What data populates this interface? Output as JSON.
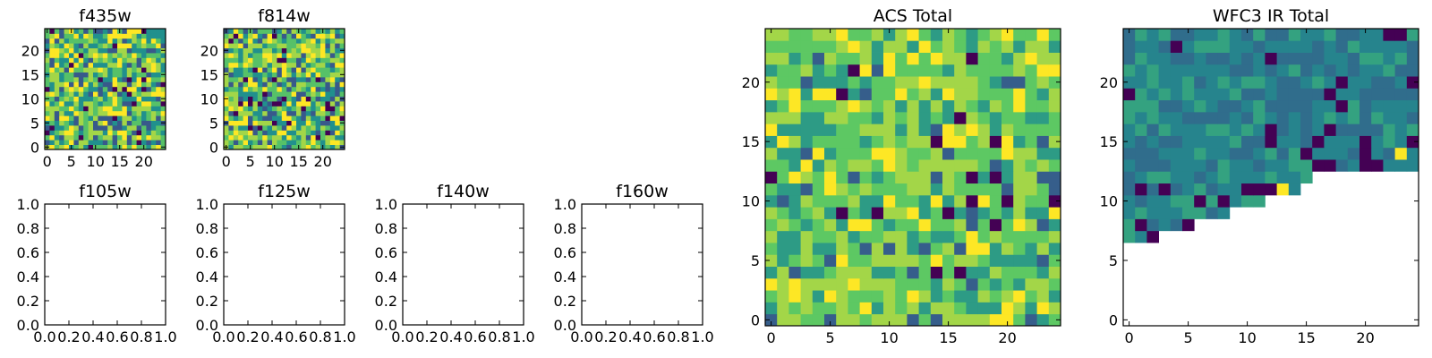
{
  "figure": {
    "background": "#ffffff"
  },
  "colormap": [
    "#440154",
    "#3b528b",
    "#21908d",
    "#5dc863",
    "#fde725"
  ],
  "chart_data": [
    {
      "type": "heatmap",
      "title": "f435w",
      "xticks": [
        "0",
        "5",
        "10",
        "15",
        "20"
      ],
      "yticks": [
        "0",
        "5",
        "10",
        "15",
        "20"
      ],
      "xlim": [
        0,
        25
      ],
      "ylim": [
        0,
        25
      ],
      "grid": false,
      "pattern": "noisy"
    },
    {
      "type": "heatmap",
      "title": "f814w",
      "xticks": [
        "0",
        "5",
        "10",
        "15",
        "20"
      ],
      "yticks": [
        "0",
        "5",
        "10",
        "15",
        "20"
      ],
      "xlim": [
        0,
        25
      ],
      "ylim": [
        0,
        25
      ],
      "grid": false,
      "pattern": "noisy"
    },
    {
      "type": "heatmap",
      "title": "f105w",
      "xticks": [
        "0.0",
        "0.2",
        "0.4",
        "0.6",
        "0.8",
        "1.0"
      ],
      "yticks": [
        "0.0",
        "0.2",
        "0.4",
        "0.6",
        "0.8",
        "1.0"
      ],
      "xlim": [
        0,
        1
      ],
      "ylim": [
        0,
        1
      ],
      "grid": false,
      "pattern": "empty"
    },
    {
      "type": "heatmap",
      "title": "f125w",
      "xticks": [
        "0.0",
        "0.2",
        "0.4",
        "0.6",
        "0.8",
        "1.0"
      ],
      "yticks": [
        "0.0",
        "0.2",
        "0.4",
        "0.6",
        "0.8",
        "1.0"
      ],
      "xlim": [
        0,
        1
      ],
      "ylim": [
        0,
        1
      ],
      "grid": false,
      "pattern": "empty"
    },
    {
      "type": "heatmap",
      "title": "f140w",
      "xticks": [
        "0.0",
        "0.2",
        "0.4",
        "0.6",
        "0.8",
        "1.0"
      ],
      "yticks": [
        "0.0",
        "0.2",
        "0.4",
        "0.6",
        "0.8",
        "1.0"
      ],
      "xlim": [
        0,
        1
      ],
      "ylim": [
        0,
        1
      ],
      "grid": false,
      "pattern": "empty"
    },
    {
      "type": "heatmap",
      "title": "f160w",
      "xticks": [
        "0.0",
        "0.2",
        "0.4",
        "0.6",
        "0.8",
        "1.0"
      ],
      "yticks": [
        "0.0",
        "0.2",
        "0.4",
        "0.6",
        "0.8",
        "1.0"
      ],
      "xlim": [
        0,
        1
      ],
      "ylim": [
        0,
        1
      ],
      "grid": false,
      "pattern": "empty"
    },
    {
      "type": "heatmap",
      "title": "ACS Total",
      "xticks": [
        "0",
        "5",
        "10",
        "15",
        "20"
      ],
      "yticks": [
        "0",
        "5",
        "10",
        "15",
        "20"
      ],
      "xlim": [
        0,
        25
      ],
      "ylim": [
        0,
        25
      ],
      "grid": false,
      "pattern": "bright"
    },
    {
      "type": "heatmap",
      "title": "WFC3 IR Total",
      "xticks": [
        "0",
        "5",
        "10",
        "15",
        "20"
      ],
      "yticks": [
        "0",
        "5",
        "10",
        "15",
        "20"
      ],
      "xlim": [
        0,
        25
      ],
      "ylim": [
        0,
        25
      ],
      "grid": false,
      "pattern": "wedge"
    }
  ]
}
